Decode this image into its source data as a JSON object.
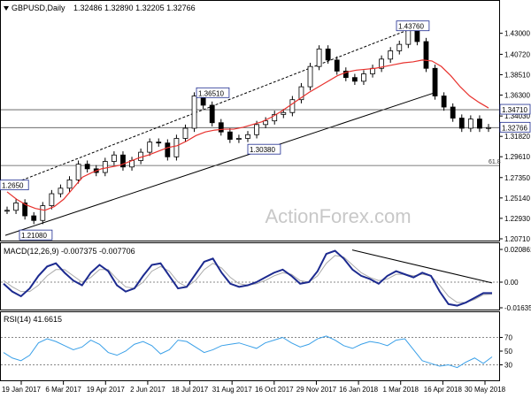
{
  "header": {
    "symbol": "GBPUSD,Daily",
    "ohlc": "1.32486 1.32890 1.32205 1.32766"
  },
  "watermark": "ActionForex.com",
  "colors": {
    "background": "#ffffff",
    "price": "#000000",
    "ma": "#e8322e",
    "channel": "#000000",
    "hline": "#555555",
    "macd": "#1c2a8f",
    "signal": "#aaaaaa",
    "rsi": "#3aa0e8",
    "grid": "#888888",
    "label_border": "#1c2a8f"
  },
  "chart_data": [
    {
      "type": "line",
      "panel": "price",
      "y_ticks": [
        "1.43000",
        "1.40720",
        "1.38510",
        "1.36300",
        "1.34030",
        "1.31820",
        "1.29610",
        "1.27350",
        "1.25140",
        "1.22930",
        "1.20710"
      ],
      "ylim": [
        1.2071,
        1.445
      ],
      "x_ticks": [
        "19 Jan 2017",
        "6 Mar 2017",
        "19 Apr 2017",
        "2 Jun 2017",
        "18 Jul 2017",
        "31 Aug 2017",
        "16 Oct 2017",
        "29 Nov 2017",
        "16 Jan 2018",
        "1 Mar 2018",
        "16 Apr 2018",
        "30 May 2018"
      ],
      "series": [
        {
          "type": "candlestick",
          "approx_closes": [
            1.238,
            1.246,
            1.232,
            1.227,
            1.243,
            1.256,
            1.262,
            1.271,
            1.288,
            1.283,
            1.279,
            1.291,
            1.298,
            1.285,
            1.292,
            1.301,
            1.312,
            1.311,
            1.296,
            1.316,
            1.327,
            1.362,
            1.352,
            1.333,
            1.323,
            1.315,
            1.316,
            1.32,
            1.331,
            1.335,
            1.342,
            1.344,
            1.358,
            1.372,
            1.394,
            1.413,
            1.401,
            1.389,
            1.382,
            1.378,
            1.386,
            1.392,
            1.402,
            1.411,
            1.418,
            1.435,
            1.421,
            1.392,
            1.362,
            1.35,
            1.338,
            1.327,
            1.337,
            1.327,
            1.3277
          ]
        },
        {
          "type": "moving-average",
          "approx_values": [
            1.258,
            1.25,
            1.244,
            1.24,
            1.238,
            1.242,
            1.25,
            1.262,
            1.274,
            1.279,
            1.283,
            1.285,
            1.287,
            1.291,
            1.295,
            1.298,
            1.302,
            1.306,
            1.308,
            1.313,
            1.319,
            1.323,
            1.325,
            1.326,
            1.326,
            1.328,
            1.331,
            1.334,
            1.339,
            1.345,
            1.352,
            1.359,
            1.366,
            1.372,
            1.378,
            1.384,
            1.388,
            1.39,
            1.391,
            1.392,
            1.394,
            1.396,
            1.398,
            1.399,
            1.401,
            1.4,
            1.394,
            1.384,
            1.372,
            1.362,
            1.355,
            1.349
          ]
        }
      ],
      "annotations": {
        "horizontal_lines": [
          {
            "label": "1.34710",
            "value": 1.3471
          },
          {
            "label": "1.32766",
            "value": 1.32766
          },
          {
            "label": "61.8",
            "value": 1.2866
          }
        ],
        "price_labels": [
          {
            "text": "1.43760",
            "value": 1.4376
          },
          {
            "text": "1.36510",
            "value": 1.3651
          },
          {
            "text": "1.30380",
            "value": 1.3038
          },
          {
            "text": "1.21080",
            "value": 1.2108
          },
          {
            "text": "1.2650",
            "value": 1.265
          }
        ]
      }
    },
    {
      "type": "line",
      "panel": "macd",
      "label": "MACD(12,26,9) -0.007375 -0.007706",
      "y_ticks": [
        "0.020861",
        "0.00",
        "-0.016357"
      ],
      "ylim": [
        -0.016357,
        0.020861
      ],
      "series": [
        {
          "type": "macd",
          "approx_values": [
            -0.001,
            -0.006,
            -0.009,
            -0.004,
            0.004,
            0.01,
            0.012,
            0.006,
            0.001,
            -0.002,
            0.006,
            0.011,
            0.007,
            -0.002,
            -0.006,
            -0.004,
            0.004,
            0.011,
            0.012,
            0.004,
            -0.004,
            -0.003,
            0.005,
            0.013,
            0.015,
            0.006,
            -0.001,
            -0.003,
            -0.002,
            0.0,
            0.003,
            0.006,
            0.008,
            0.004,
            -0.001,
            0.0,
            0.007,
            0.018,
            0.02,
            0.015,
            0.008,
            0.004,
            0.002,
            -0.001,
            0.004,
            0.007,
            0.005,
            0.003,
            0.006,
            0.004,
            -0.006,
            -0.014,
            -0.015,
            -0.013,
            -0.01,
            -0.007,
            -0.007
          ]
        },
        {
          "type": "signal",
          "approx_values": [
            0.001,
            -0.003,
            -0.006,
            -0.006,
            -0.002,
            0.004,
            0.008,
            0.008,
            0.004,
            0.0,
            0.003,
            0.008,
            0.008,
            0.002,
            -0.003,
            -0.004,
            0.0,
            0.007,
            0.01,
            0.007,
            0.0,
            -0.003,
            0.001,
            0.008,
            0.012,
            0.009,
            0.003,
            -0.001,
            -0.002,
            -0.001,
            0.001,
            0.004,
            0.006,
            0.005,
            0.001,
            0.0,
            0.004,
            0.012,
            0.017,
            0.016,
            0.011,
            0.006,
            0.003,
            0.001,
            0.002,
            0.005,
            0.005,
            0.004,
            0.005,
            0.004,
            -0.002,
            -0.009,
            -0.013,
            -0.013,
            -0.011,
            -0.008,
            -0.0077
          ]
        }
      ]
    },
    {
      "type": "line",
      "panel": "rsi",
      "label": "RSI(14) 41.6615",
      "y_ticks": [
        "70",
        "50",
        "30"
      ],
      "ylim": [
        10,
        90
      ],
      "series": [
        {
          "type": "rsi",
          "approx_values": [
            48,
            40,
            36,
            44,
            62,
            68,
            64,
            58,
            52,
            56,
            66,
            60,
            48,
            44,
            50,
            60,
            64,
            58,
            46,
            52,
            66,
            64,
            56,
            48,
            52,
            58,
            60,
            62,
            58,
            54,
            62,
            66,
            70,
            62,
            56,
            60,
            68,
            72,
            66,
            58,
            54,
            60,
            64,
            62,
            58,
            66,
            68,
            52,
            36,
            32,
            28,
            30,
            26,
            34,
            40,
            32,
            41.66
          ]
        }
      ]
    }
  ]
}
